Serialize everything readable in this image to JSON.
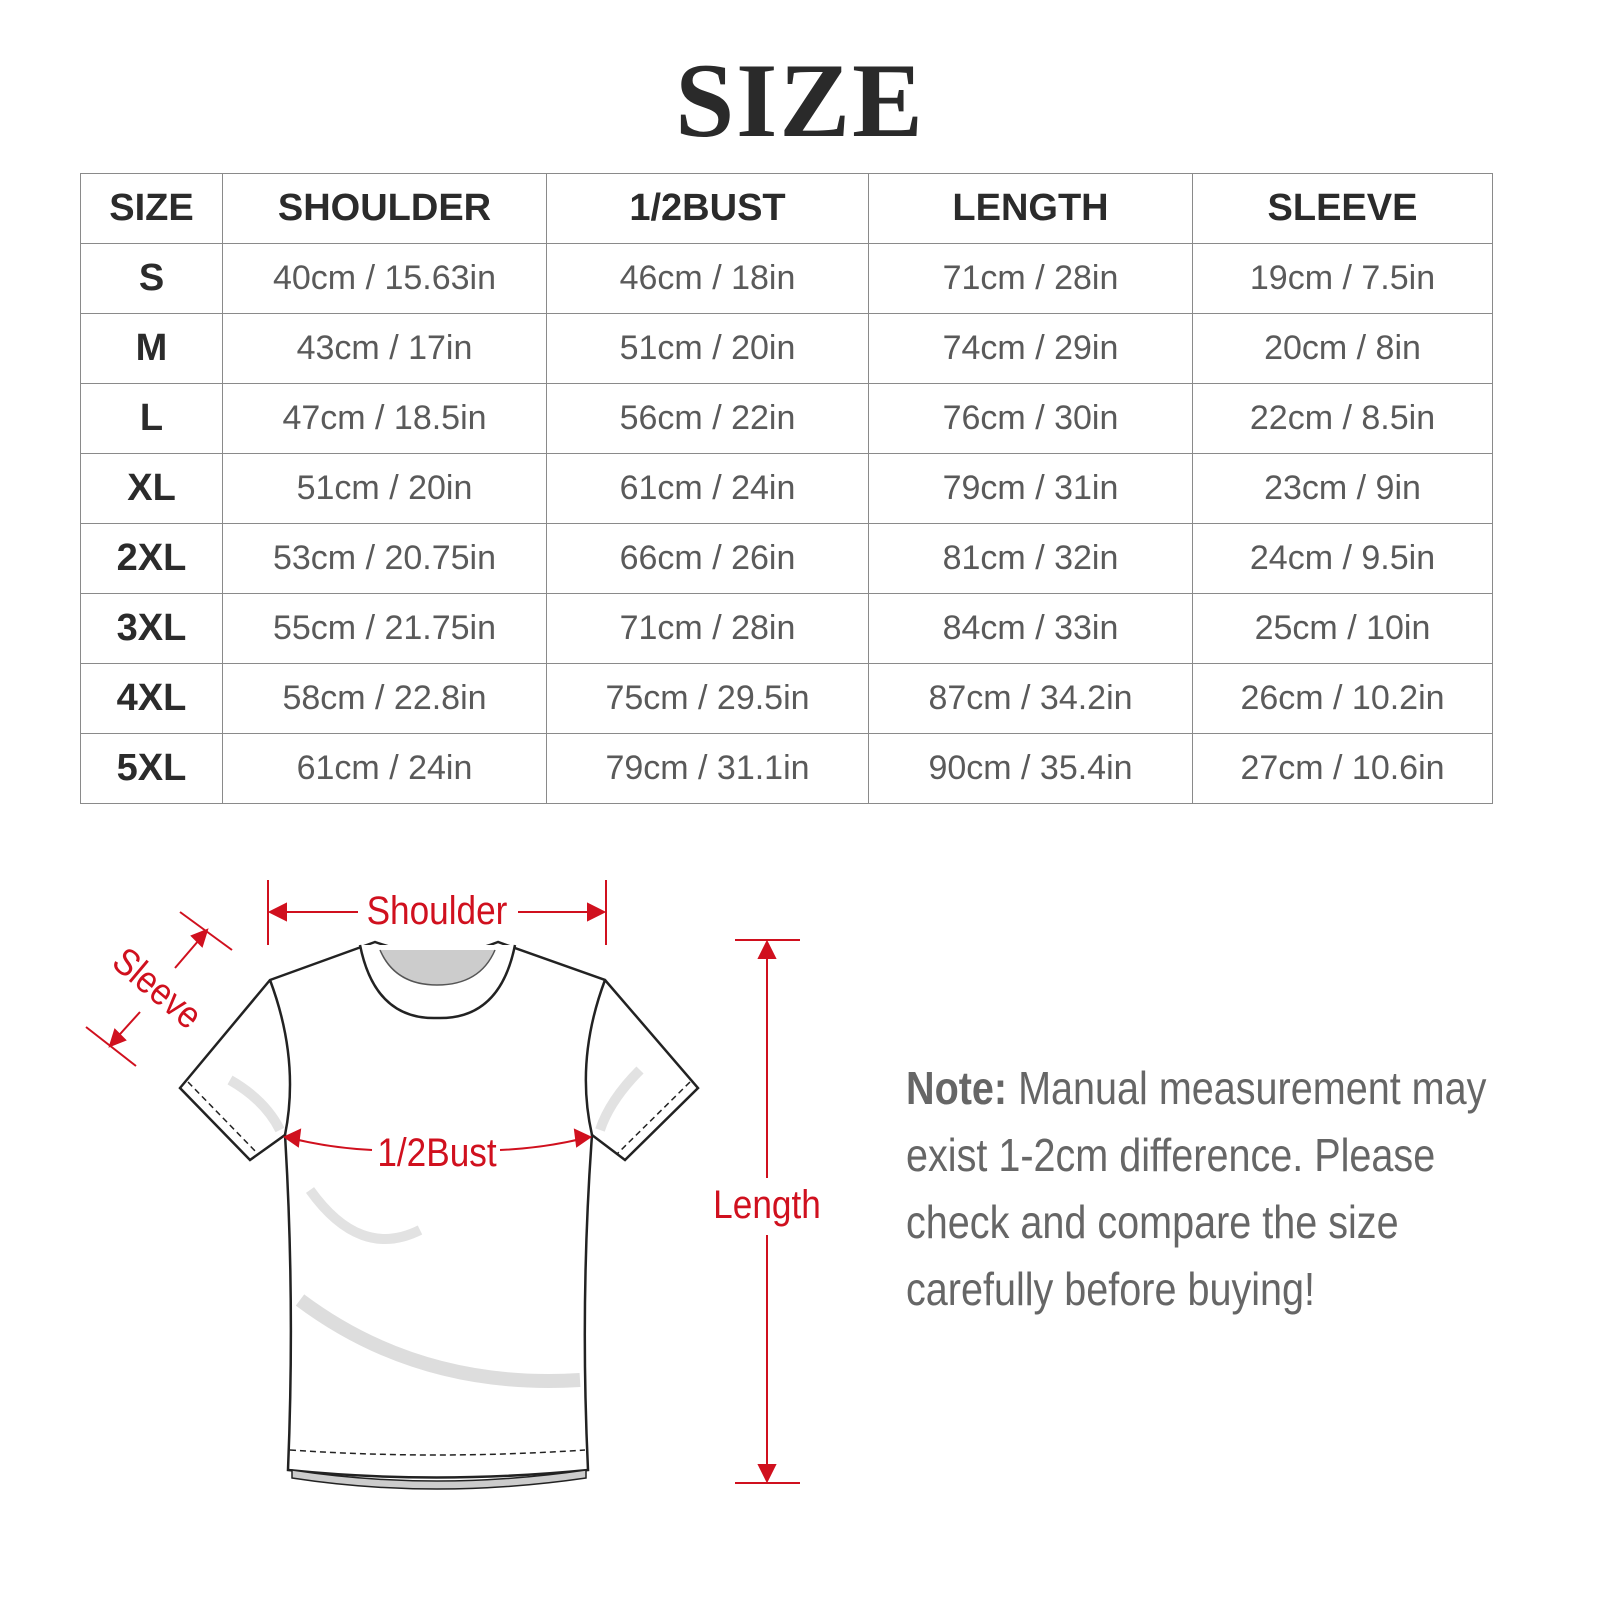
{
  "title": "SIZE",
  "table": {
    "headers": [
      "SIZE",
      "SHOULDER",
      "1/2BUST",
      "LENGTH",
      "SLEEVE"
    ],
    "rows": [
      [
        "S",
        "40cm / 15.63in",
        "46cm / 18in",
        "71cm / 28in",
        "19cm / 7.5in"
      ],
      [
        "M",
        "43cm / 17in",
        "51cm / 20in",
        "74cm / 29in",
        "20cm / 8in"
      ],
      [
        "L",
        "47cm / 18.5in",
        "56cm / 22in",
        "76cm / 30in",
        "22cm / 8.5in"
      ],
      [
        "XL",
        "51cm / 20in",
        "61cm / 24in",
        "79cm / 31in",
        "23cm / 9in"
      ],
      [
        "2XL",
        "53cm / 20.75in",
        "66cm / 26in",
        "81cm / 32in",
        "24cm / 9.5in"
      ],
      [
        "3XL",
        "55cm / 21.75in",
        "71cm / 28in",
        "84cm / 33in",
        "25cm / 10in"
      ],
      [
        "4XL",
        "58cm / 22.8in",
        "75cm / 29.5in",
        "87cm / 34.2in",
        "26cm / 10.2in"
      ],
      [
        "5XL",
        "61cm / 24in",
        "79cm / 31.1in",
        "90cm / 35.4in",
        "27cm / 10.6in"
      ]
    ]
  },
  "diagram": {
    "labels": {
      "shoulder": "Shoulder",
      "sleeve": "Sleeve",
      "bust": "1/2Bust",
      "length": "Length"
    },
    "accent_color": "#d0101e"
  },
  "note": {
    "label": "Note:",
    "text": " Manual measurement may exist 1-2cm difference. Please check and compare the size carefully before buying!"
  }
}
